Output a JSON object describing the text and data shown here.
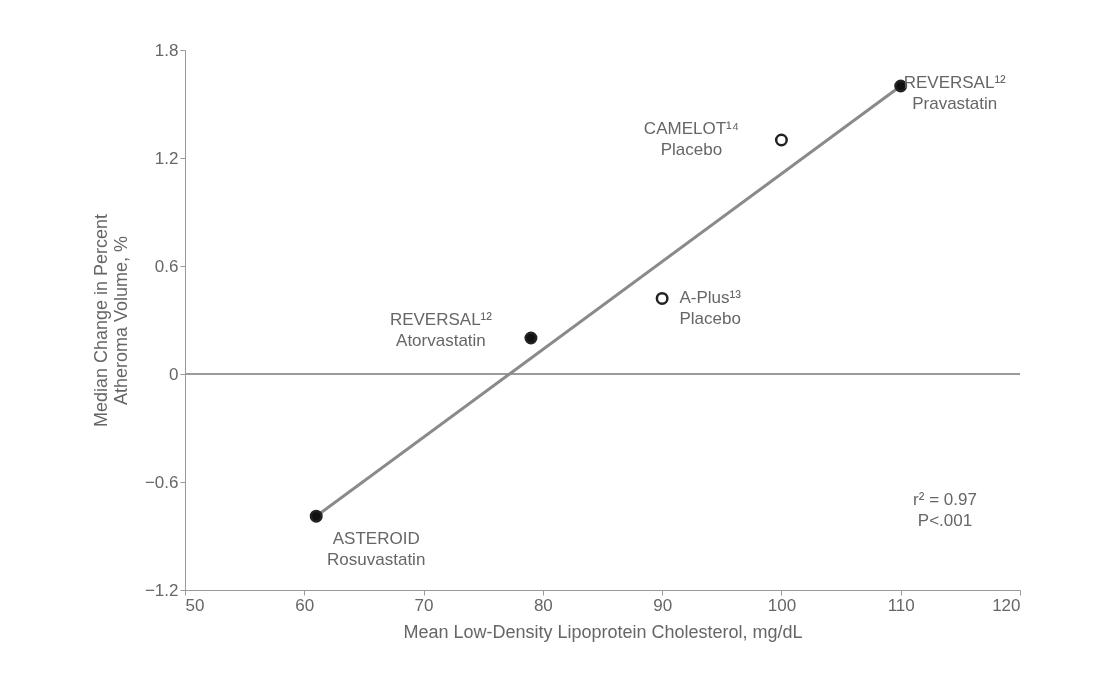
{
  "chart_data": {
    "type": "scatter",
    "xlabel": "Mean Low-Density Lipoprotein Cholesterol, mg/dL",
    "ylabel": "Median Change in Percent\nAtheroma Volume, %",
    "xlim": [
      50,
      120
    ],
    "xticks": [
      50,
      60,
      70,
      80,
      90,
      100,
      110,
      120
    ],
    "ylim": [
      -1.2,
      1.8
    ],
    "yticks": [
      -1.2,
      -0.6,
      {
        "value": 0,
        "label": "0"
      },
      0.6,
      1.2,
      1.8
    ],
    "grid": false,
    "series": [
      {
        "marker": "circle",
        "color": "#111111",
        "x": [
          61,
          79,
          110
        ],
        "values": [
          -0.79,
          0.2,
          1.6
        ]
      },
      {
        "marker": "circle",
        "color": "#ffffff",
        "x": [
          100,
          90
        ],
        "values": [
          1.3,
          0.42
        ]
      },
      {
        "type": "line",
        "color": "#8a8a8a",
        "x": [
          61,
          110
        ],
        "values": [
          -0.79,
          1.6
        ]
      }
    ],
    "ref_lines": [
      {
        "axis": "y",
        "value": 0,
        "color": "#9a9a9a"
      }
    ],
    "annotations": [
      {
        "text": "REVERSAL¹²\nPravastatin",
        "x": 110,
        "y": 1.6
      },
      {
        "text": "CAMELOT¹⁴\nPlacebo",
        "x": 100,
        "y": 1.3
      },
      {
        "text": "A-Plus¹³\nPlacebo",
        "x": 90,
        "y": 0.42
      },
      {
        "text": "REVERSAL¹²\nAtorvastatin",
        "x": 79,
        "y": 0.2
      },
      {
        "text": "ASTEROID\nRosuvastatin",
        "x": 61,
        "y": -0.79
      },
      "r² = 0.97\nP<.001"
    ]
  }
}
